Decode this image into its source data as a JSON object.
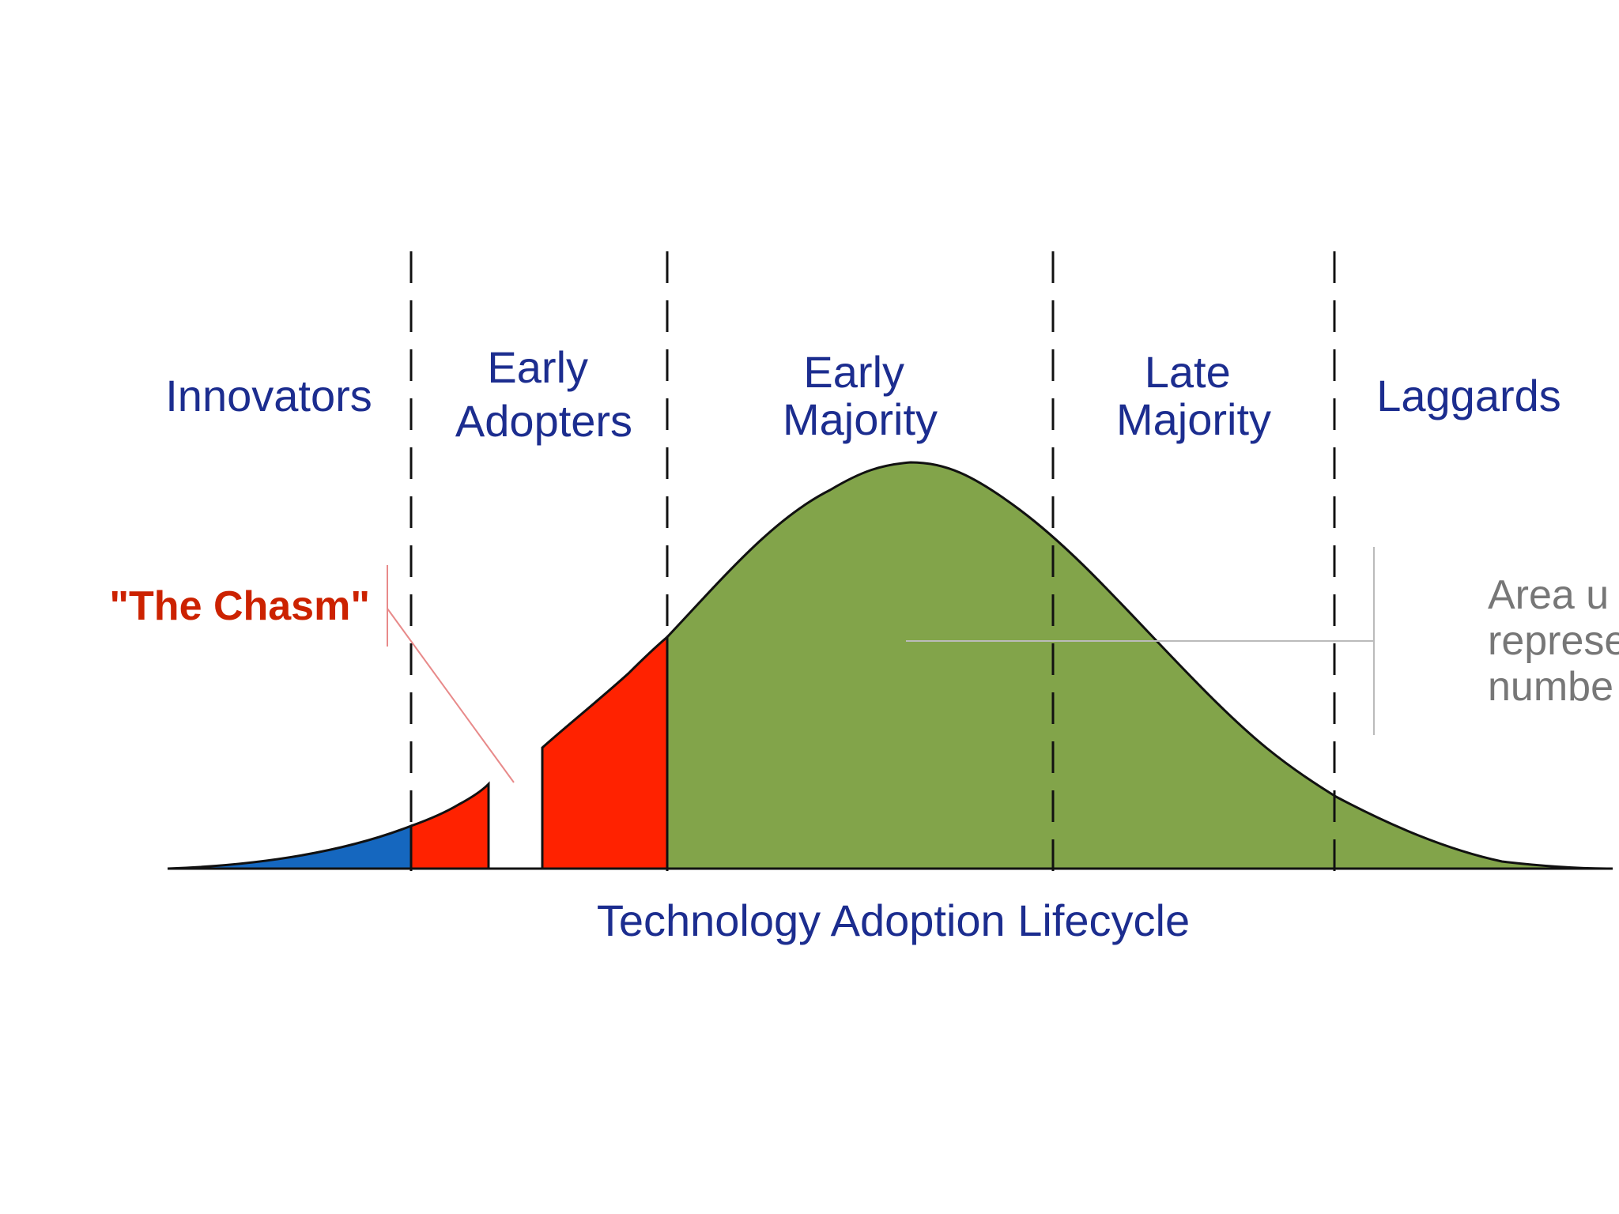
{
  "colors": {
    "label": "#1c2d8f",
    "chasm": "#cc2200",
    "innovators_fill": "#1567bf",
    "early_adopters_fill": "#ff2200",
    "majority_fill": "#82a44a",
    "outline": "#111111",
    "note_text": "#777777",
    "note_line": "#bbbbbb",
    "chasm_line": "#e88a8a"
  },
  "segments": [
    {
      "id": "innovators",
      "lines": [
        "Innovators"
      ]
    },
    {
      "id": "early-adopters",
      "lines": [
        "Early",
        "Adopters"
      ]
    },
    {
      "id": "early-majority",
      "lines": [
        "Early",
        "Majority"
      ]
    },
    {
      "id": "late-majority",
      "lines": [
        "Late",
        "Majority"
      ]
    },
    {
      "id": "laggards",
      "lines": [
        "Laggards"
      ]
    }
  ],
  "chasm_label": "\"The Chasm\"",
  "axis_label": "Technology Adoption Lifecycle",
  "note_lines": [
    "Area u",
    "represe",
    "numbe"
  ]
}
